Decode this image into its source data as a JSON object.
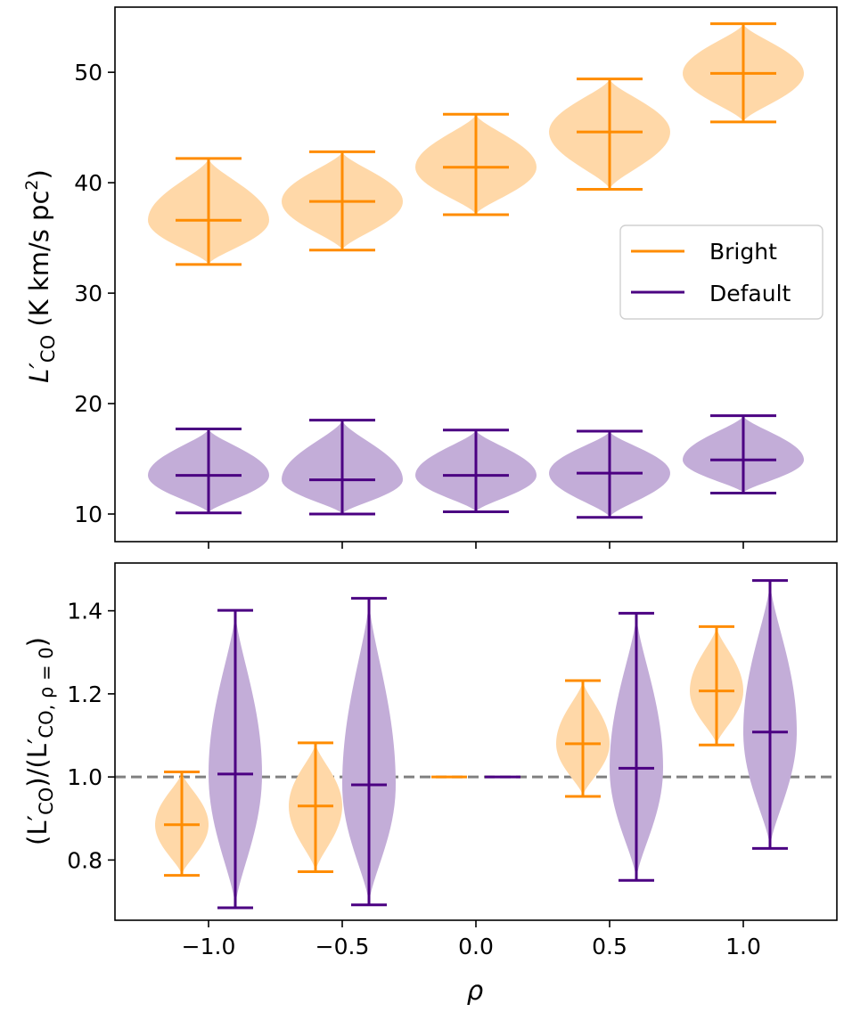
{
  "chart_data": [
    {
      "type": "violin",
      "panel": "top",
      "ylabel": "L′CO (K km/s pc²)",
      "ylim": [
        7.5,
        55.9
      ],
      "xlim": [
        -1.35,
        1.35
      ],
      "yticks": [
        10,
        20,
        30,
        40,
        50
      ],
      "x_tick_labels_shown": false,
      "legend": {
        "placement": "center-right",
        "entries": [
          "Bright",
          "Default"
        ]
      },
      "series": [
        {
          "name": "Bright",
          "color": "#ff8c00",
          "x": [
            -1.0,
            -0.5,
            0.0,
            0.5,
            1.0
          ],
          "median": [
            36.6,
            38.3,
            41.4,
            44.6,
            49.9
          ],
          "min": [
            32.6,
            33.9,
            37.1,
            39.4,
            45.5
          ],
          "max": [
            42.2,
            42.8,
            46.2,
            49.4,
            54.4
          ]
        },
        {
          "name": "Default",
          "color": "#4b0082",
          "x": [
            -1.0,
            -0.5,
            0.0,
            0.5,
            1.0
          ],
          "median": [
            13.5,
            13.1,
            13.5,
            13.7,
            14.9
          ],
          "min": [
            10.1,
            10.0,
            10.2,
            9.7,
            11.9
          ],
          "max": [
            17.7,
            18.5,
            17.6,
            17.5,
            18.9
          ]
        }
      ]
    },
    {
      "type": "violin",
      "panel": "bottom",
      "xlabel": "ρ",
      "ylabel": "(L′CO)/(L′CO, ρ=0)",
      "ylim": [
        0.655,
        1.515
      ],
      "xlim": [
        -1.35,
        1.35
      ],
      "xticks": [
        -1.0,
        -0.5,
        0.0,
        0.5,
        1.0
      ],
      "xtick_labels": [
        "−1.0",
        "−0.5",
        "0.0",
        "0.5",
        "1.0"
      ],
      "yticks": [
        0.8,
        1.0,
        1.2,
        1.4
      ],
      "ytick_labels": [
        "0.8",
        "1.0",
        "1.2",
        "1.4"
      ],
      "reference_line": {
        "y": 1.0,
        "style": "dashed",
        "color": "#808080"
      },
      "series": [
        {
          "name": "Bright",
          "color": "#ff8c00",
          "x": [
            -1.1,
            -0.6,
            -0.1,
            0.4,
            0.9
          ],
          "median": [
            0.885,
            0.93,
            1.0,
            1.08,
            1.207
          ],
          "min": [
            0.763,
            0.772,
            1.0,
            0.953,
            1.077
          ],
          "max": [
            1.012,
            1.082,
            1.0,
            1.232,
            1.362
          ]
        },
        {
          "name": "Default",
          "color": "#4b0082",
          "x": [
            -0.9,
            -0.4,
            0.1,
            0.6,
            1.1
          ],
          "median": [
            1.007,
            0.981,
            1.0,
            1.021,
            1.108
          ],
          "min": [
            0.685,
            0.692,
            1.0,
            0.751,
            0.828
          ],
          "max": [
            1.401,
            1.43,
            1.0,
            1.394,
            1.473
          ]
        }
      ]
    }
  ],
  "labels": {
    "top_ylabel_main": "L′",
    "top_ylabel_sub": "CO",
    "top_ylabel_rest": " (K km/s pc",
    "top_ylabel_sup": "2",
    "top_ylabel_close": ")",
    "bottom_ylabel_a": "(L′",
    "bottom_ylabel_a_sub": "CO",
    "bottom_ylabel_b": ")/(L′",
    "bottom_ylabel_b_sub": "CO, ρ = 0",
    "bottom_ylabel_c": ")",
    "xlabel": "ρ",
    "legend_bright": "Bright",
    "legend_default": "Default",
    "top_ytick_labels": [
      "10",
      "20",
      "30",
      "40",
      "50"
    ]
  },
  "colors": {
    "bright": "#ff8c00",
    "bright_fill": "#ffd8a8",
    "default": "#4b0082",
    "default_fill": "#c3add8",
    "reference_line": "#808080"
  }
}
